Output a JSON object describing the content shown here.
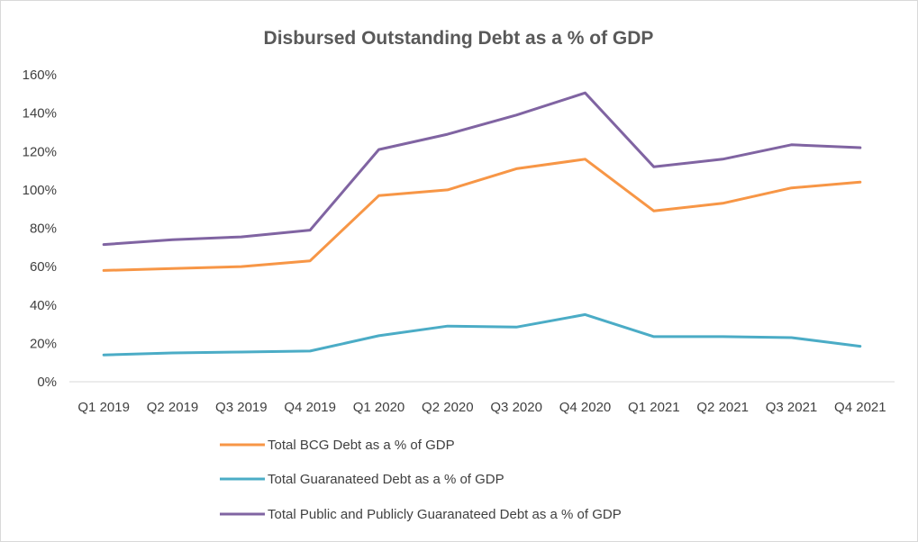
{
  "chart_data": {
    "type": "line",
    "title": "Disbursed Outstanding Debt as a % of GDP",
    "categories": [
      "Q1 2019",
      "Q2 2019",
      "Q3 2019",
      "Q4 2019",
      "Q1 2020",
      "Q2 2020",
      "Q3 2020",
      "Q4 2020",
      "Q1 2021",
      "Q2 2021",
      "Q3 2021",
      "Q4 2021"
    ],
    "y_ticks": [
      "0%",
      "20%",
      "40%",
      "60%",
      "80%",
      "100%",
      "120%",
      "140%",
      "160%"
    ],
    "ylim": [
      0,
      160
    ],
    "grid": false,
    "legend_position": "bottom",
    "series": [
      {
        "name": "Total BCG Debt as a % of GDP",
        "color": "#f79646",
        "values": [
          58,
          59,
          60,
          63,
          97,
          100,
          111,
          116,
          89,
          93,
          101,
          104
        ]
      },
      {
        "name": "Total Guaranateed Debt as a % of GDP",
        "color": "#4bacc6",
        "values": [
          14,
          15,
          15.5,
          16,
          24,
          29,
          28.5,
          35,
          23.5,
          23.5,
          23,
          18.5
        ]
      },
      {
        "name": "Total Public and Publicly Guaranateed Debt as a % of GDP",
        "color": "#8064a2",
        "values": [
          71.5,
          74,
          75.5,
          79,
          121,
          129,
          139,
          150.5,
          112,
          116,
          123.5,
          122
        ]
      }
    ]
  }
}
